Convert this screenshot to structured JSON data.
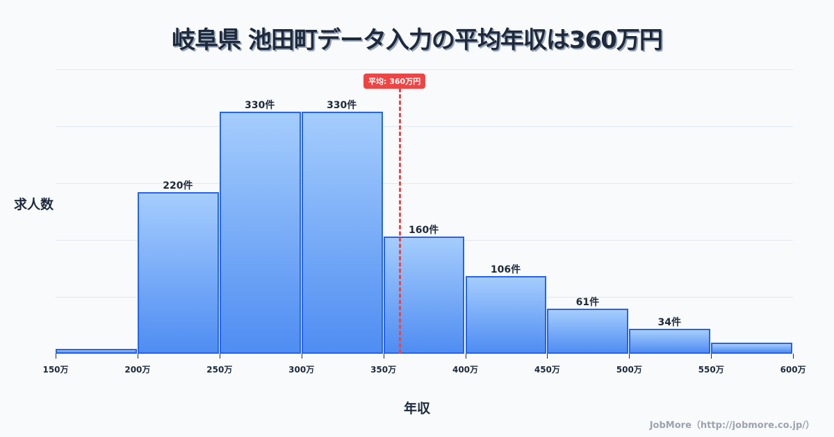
{
  "title": "岐阜県 池田町データ入力の平均年収は360万円",
  "credit": "JobMore（http://jobmore.co.jp/）",
  "average_badge": "平均: 360万円",
  "chart_data": {
    "type": "bar",
    "title": "岐阜県 池田町データ入力の平均年収は360万円",
    "xlabel": "年収",
    "ylabel": "求人数",
    "categories": [
      "150-200万",
      "200-250万",
      "250-300万",
      "300-350万",
      "350-400万",
      "400-450万",
      "450-500万",
      "500-550万",
      "550-600万"
    ],
    "values": [
      7,
      220,
      330,
      330,
      160,
      106,
      61,
      34,
      15
    ],
    "value_labels": [
      "",
      "220件",
      "330件",
      "330件",
      "160件",
      "106件",
      "61件",
      "34件",
      ""
    ],
    "x_ticks": [
      "150万",
      "200万",
      "250万",
      "300万",
      "350万",
      "400万",
      "450万",
      "500万",
      "550万",
      "600万"
    ],
    "average": 360,
    "average_label": "平均: 360万円",
    "grid": true,
    "colors": {
      "bar_border": "#2563eb",
      "bar_top": "#a5cdfd",
      "bar_bottom": "#4f8df2",
      "average": "#ef4444"
    }
  }
}
